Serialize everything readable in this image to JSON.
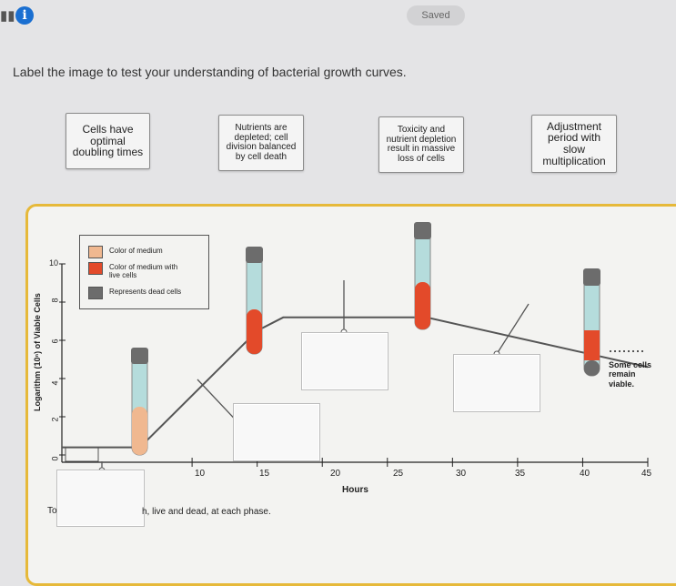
{
  "topbar": {
    "menu_icon": "hamburger-icon",
    "info_icon": "info-icon",
    "info_glyph": "i",
    "saved_label": "Saved"
  },
  "instructions": "Label the image to test your understanding of bacterial growth curves.",
  "label_tiles": [
    {
      "text": "Cells have optimal doubling times"
    },
    {
      "text": "Nutrients are depleted; cell division balanced by cell death"
    },
    {
      "text": "Toxicity and nutrient depletion result in massive loss of cells"
    },
    {
      "text": "Adjustment period with slow multiplication"
    }
  ],
  "figure": {
    "y_axis_title": "Logarithm (10ⁿ) of Viable Cells",
    "y_ticks": [
      "10",
      "8",
      "6",
      "4",
      "2",
      "0"
    ],
    "x_axis_title": "Hours",
    "x_ticks": [
      "10",
      "15",
      "20",
      "25",
      "30",
      "35",
      "40",
      "45"
    ],
    "legend": [
      {
        "label": "Color of medium",
        "color": "#f0b890"
      },
      {
        "label": "Color of medium with live cells",
        "color": "#e34a2a"
      },
      {
        "label": "Represents dead cells",
        "color": "#6c6c6c"
      }
    ],
    "note": "Some cells remain viable.",
    "caption": "h, live and dead, at each phase.",
    "caption_left": "To"
  },
  "colors": {
    "accent_info": "#1a6fd1",
    "figure_border": "#e6b93a",
    "medium": "#f0b890",
    "live": "#e34a2a",
    "dead": "#6c6c6c",
    "tube_glass": "#a8d8d8"
  },
  "chart_data": {
    "type": "line",
    "x": [
      0,
      4,
      6,
      15,
      17,
      28,
      45
    ],
    "y": [
      0.4,
      0.4,
      0.4,
      6.5,
      7.2,
      7.2,
      4.6
    ],
    "xlabel": "Hours",
    "ylabel": "Logarithm (10ⁿ) of Viable Cells",
    "xlim": [
      0,
      45
    ],
    "ylim": [
      0,
      10
    ]
  }
}
